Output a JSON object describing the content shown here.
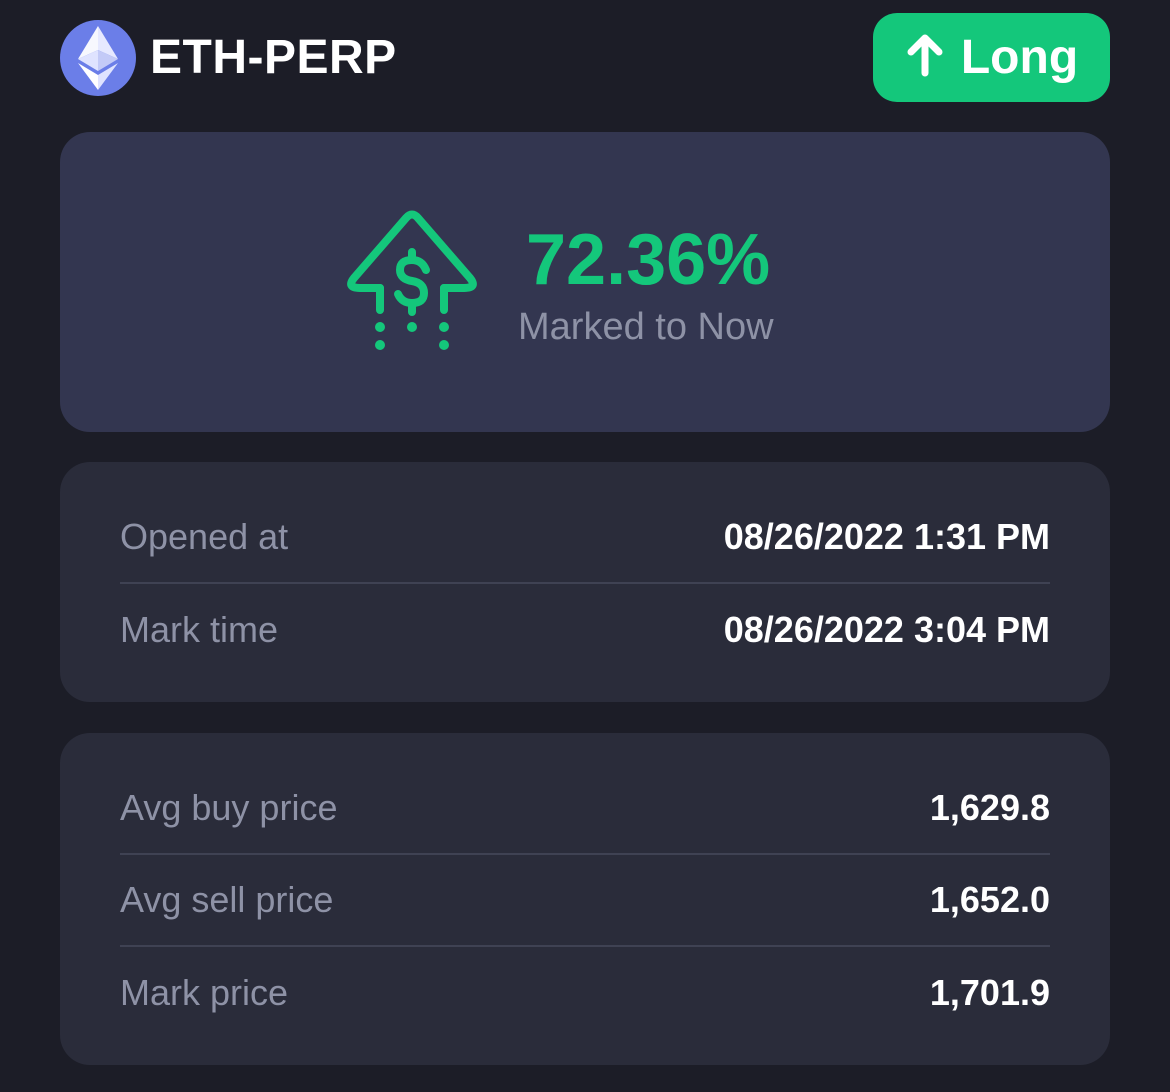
{
  "header": {
    "asset_icon": "ethereum-icon",
    "pair": "ETH-PERP",
    "side": {
      "icon": "arrow-up-icon",
      "label": "Long",
      "color": "#14c77b"
    }
  },
  "hero": {
    "icon": "dollar-arrow-up-icon",
    "pnl_percent": "72.36%",
    "caption": "Marked to Now",
    "accent_color": "#14c77b"
  },
  "times": [
    {
      "label": "Opened at",
      "value": "08/26/2022 1:31 PM"
    },
    {
      "label": "Mark time",
      "value": "08/26/2022 3:04 PM"
    }
  ],
  "prices": [
    {
      "label": "Avg buy price",
      "value": "1,629.8"
    },
    {
      "label": "Avg sell price",
      "value": "1,652.0"
    },
    {
      "label": "Mark price",
      "value": "1,701.9"
    }
  ]
}
